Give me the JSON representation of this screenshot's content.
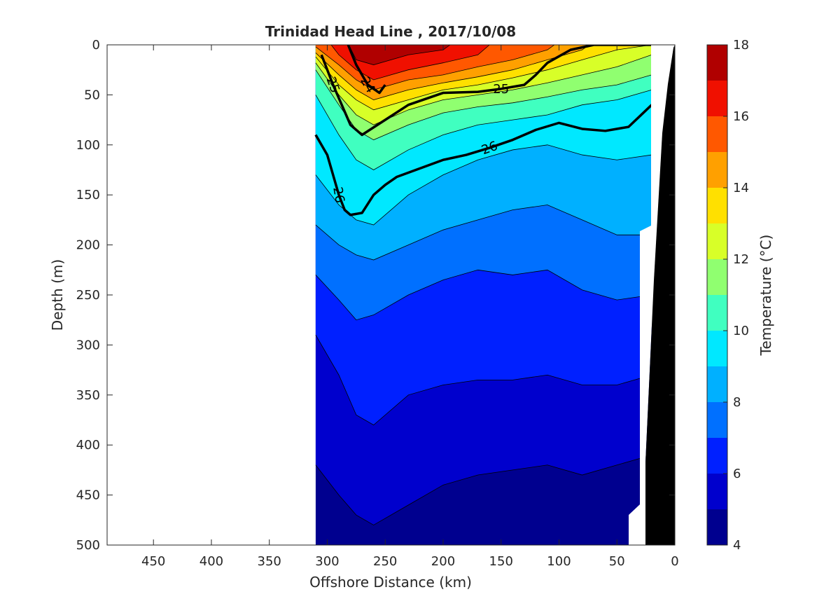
{
  "chart_data": {
    "type": "contour",
    "title": "Trinidad Head Line , 2017/10/08",
    "xlabel": "Offshore Distance (km)",
    "ylabel": "Depth (m)",
    "xlim": [
      490,
      0
    ],
    "ylim": [
      0,
      500
    ],
    "x_ticks": [
      450,
      400,
      350,
      300,
      250,
      200,
      150,
      100,
      50,
      0
    ],
    "y_ticks": [
      0,
      50,
      100,
      150,
      200,
      250,
      300,
      350,
      400,
      450,
      500
    ],
    "x_reversed": true,
    "y_reversed": true,
    "data_x_range": [
      310,
      20
    ],
    "colorbar": {
      "label": "Temperature (°C)",
      "range": [
        4,
        18
      ],
      "ticks": [
        4,
        6,
        8,
        10,
        12,
        14,
        16,
        18
      ],
      "levels": [
        4,
        5,
        6,
        7,
        8,
        9,
        10,
        11,
        12,
        13,
        14,
        15,
        16,
        17,
        18
      ],
      "colors": [
        "#00008f",
        "#0000cd",
        "#0020ff",
        "#0070ff",
        "#00b0ff",
        "#00e8ff",
        "#40ffc0",
        "#90ff70",
        "#d8ff28",
        "#ffe000",
        "#ffa000",
        "#ff5800",
        "#f01000",
        "#b00000"
      ]
    },
    "density_contours": [
      {
        "label": "24",
        "x": [
          282,
          275,
          265,
          255,
          250
        ],
        "depth": [
          0,
          20,
          40,
          48,
          40
        ]
      },
      {
        "label": "25",
        "x": [
          305,
          295,
          280,
          270,
          250,
          230,
          200,
          170,
          150,
          130,
          120,
          110,
          90,
          70,
          50,
          40,
          30,
          20
        ],
        "depth": [
          10,
          40,
          80,
          90,
          75,
          60,
          48,
          47,
          44,
          40,
          30,
          18,
          5,
          0,
          0,
          0,
          0,
          0
        ]
      },
      {
        "label": "26",
        "x": [
          310,
          300,
          295,
          290,
          285,
          280,
          270,
          260,
          250,
          240,
          200,
          180,
          160,
          140,
          120,
          100,
          80,
          60,
          40,
          20
        ],
        "depth": [
          90,
          110,
          130,
          150,
          165,
          170,
          168,
          150,
          140,
          132,
          115,
          110,
          103,
          95,
          85,
          78,
          84,
          86,
          82,
          60
        ]
      }
    ],
    "temperature_profile": {
      "x": [
        310,
        290,
        275,
        260,
        230,
        200,
        170,
        140,
        110,
        80,
        50,
        20
      ],
      "isotherm_depths": {
        "17": [
          -1,
          -1,
          15,
          20,
          10,
          5,
          -1,
          -1,
          -1,
          -1,
          -1,
          -1
        ],
        "16": [
          -1,
          10,
          25,
          35,
          25,
          18,
          10,
          -1,
          -1,
          -1,
          -1,
          -1
        ],
        "15": [
          2,
          20,
          35,
          45,
          35,
          30,
          22,
          15,
          5,
          -1,
          -1,
          -1
        ],
        "14": [
          8,
          30,
          45,
          55,
          45,
          38,
          32,
          25,
          15,
          5,
          -1,
          -1
        ],
        "13": [
          12,
          40,
          55,
          65,
          55,
          45,
          40,
          33,
          25,
          15,
          5,
          0
        ],
        "12": [
          18,
          50,
          70,
          80,
          65,
          55,
          50,
          45,
          38,
          30,
          22,
          10
        ],
        "11": [
          25,
          60,
          85,
          95,
          80,
          68,
          62,
          58,
          52,
          45,
          40,
          30
        ],
        "10": [
          50,
          90,
          115,
          125,
          105,
          90,
          80,
          75,
          70,
          60,
          55,
          45
        ],
        "9": [
          130,
          160,
          175,
          180,
          150,
          130,
          115,
          105,
          100,
          110,
          115,
          110
        ],
        "8": [
          180,
          200,
          210,
          215,
          200,
          185,
          175,
          165,
          160,
          175,
          190,
          190
        ],
        "7": [
          230,
          255,
          275,
          270,
          250,
          235,
          225,
          230,
          225,
          245,
          255,
          250
        ],
        "6": [
          290,
          330,
          370,
          380,
          350,
          340,
          335,
          335,
          330,
          340,
          340,
          330
        ],
        "5": [
          420,
          450,
          470,
          480,
          460,
          440,
          430,
          425,
          420,
          430,
          420,
          410
        ]
      }
    }
  }
}
